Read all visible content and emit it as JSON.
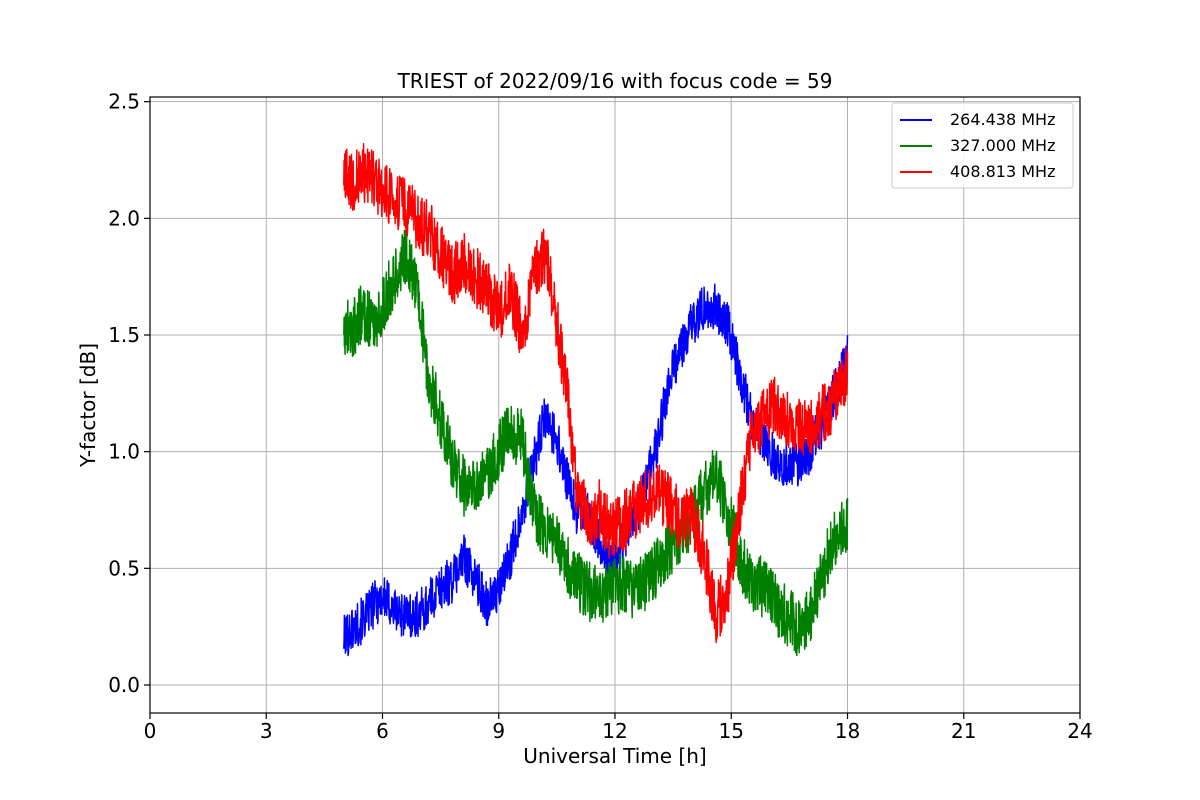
{
  "chart_data": {
    "type": "line",
    "title": "TRIEST of 2022/09/16 with focus code = 59",
    "xlabel": "Universal Time [h]",
    "ylabel": "Y-factor [dB]",
    "xlim": [
      0,
      24
    ],
    "ylim": [
      -0.12,
      2.52
    ],
    "x_ticks": [
      0,
      3,
      6,
      9,
      12,
      15,
      18,
      21,
      24
    ],
    "y_ticks": [
      0.0,
      0.5,
      1.0,
      1.5,
      2.0,
      2.5
    ],
    "x_tick_labels": [
      "0",
      "3",
      "6",
      "9",
      "12",
      "15",
      "18",
      "21",
      "24"
    ],
    "y_tick_labels": [
      "0.0",
      "0.5",
      "1.0",
      "1.5",
      "2.0",
      "2.5"
    ],
    "grid": true,
    "legend_position": "top-right",
    "noise_amplitude": [
      0.1,
      0.13,
      0.13
    ],
    "series": [
      {
        "name": "264.438 MHz",
        "color": "#0000ff",
        "x": [
          5.0,
          5.2,
          5.5,
          5.8,
          6.0,
          6.3,
          6.6,
          6.9,
          7.2,
          7.5,
          7.8,
          8.1,
          8.4,
          8.7,
          9.0,
          9.3,
          9.6,
          9.9,
          10.2,
          10.5,
          10.8,
          11.0,
          11.3,
          11.6,
          11.9,
          12.2,
          12.5,
          12.8,
          13.1,
          13.4,
          13.7,
          14.0,
          14.3,
          14.6,
          14.9,
          15.2,
          15.5,
          15.8,
          16.1,
          16.4,
          16.7,
          17.0,
          17.3,
          17.6,
          18.0
        ],
        "values": [
          0.2,
          0.24,
          0.28,
          0.35,
          0.38,
          0.32,
          0.3,
          0.3,
          0.35,
          0.42,
          0.45,
          0.55,
          0.45,
          0.35,
          0.4,
          0.55,
          0.75,
          0.95,
          1.15,
          1.05,
          0.85,
          0.75,
          0.72,
          0.62,
          0.55,
          0.6,
          0.72,
          0.85,
          1.05,
          1.3,
          1.45,
          1.55,
          1.62,
          1.62,
          1.55,
          1.35,
          1.15,
          1.05,
          0.98,
          0.95,
          0.95,
          1.0,
          1.1,
          1.22,
          1.4
        ]
      },
      {
        "name": "327.000 MHz",
        "color": "#008000",
        "x": [
          5.0,
          5.2,
          5.5,
          5.8,
          6.0,
          6.3,
          6.6,
          6.9,
          7.2,
          7.5,
          7.8,
          8.1,
          8.4,
          8.7,
          9.0,
          9.3,
          9.6,
          9.9,
          10.2,
          10.5,
          10.8,
          11.0,
          11.3,
          11.6,
          11.9,
          12.2,
          12.5,
          12.8,
          13.1,
          13.4,
          13.7,
          14.0,
          14.3,
          14.6,
          14.9,
          15.2,
          15.5,
          15.8,
          16.1,
          16.4,
          16.7,
          17.0,
          17.3,
          17.6,
          18.0
        ],
        "values": [
          1.55,
          1.52,
          1.6,
          1.55,
          1.62,
          1.75,
          1.85,
          1.7,
          1.3,
          1.15,
          0.95,
          0.85,
          0.85,
          0.9,
          1.0,
          1.1,
          1.05,
          0.75,
          0.65,
          0.6,
          0.5,
          0.45,
          0.4,
          0.38,
          0.4,
          0.45,
          0.4,
          0.45,
          0.5,
          0.58,
          0.65,
          0.72,
          0.82,
          0.9,
          0.75,
          0.55,
          0.45,
          0.42,
          0.35,
          0.3,
          0.25,
          0.28,
          0.45,
          0.6,
          0.7
        ]
      },
      {
        "name": "408.813 MHz",
        "color": "#ff0000",
        "x": [
          5.0,
          5.2,
          5.5,
          5.8,
          6.0,
          6.3,
          6.6,
          6.9,
          7.2,
          7.5,
          7.8,
          8.1,
          8.4,
          8.7,
          9.0,
          9.3,
          9.6,
          9.9,
          10.2,
          10.5,
          10.8,
          11.0,
          11.3,
          11.6,
          11.9,
          12.2,
          12.5,
          12.8,
          13.1,
          13.4,
          13.7,
          14.0,
          14.3,
          14.6,
          14.9,
          15.2,
          15.5,
          15.8,
          16.1,
          16.4,
          16.7,
          17.0,
          17.3,
          17.6,
          18.0
        ],
        "values": [
          2.18,
          2.15,
          2.2,
          2.15,
          2.12,
          2.08,
          2.05,
          1.98,
          1.95,
          1.85,
          1.75,
          1.82,
          1.75,
          1.7,
          1.6,
          1.7,
          1.5,
          1.75,
          1.85,
          1.55,
          1.2,
          0.85,
          0.7,
          0.75,
          0.65,
          0.7,
          0.75,
          0.8,
          0.82,
          0.78,
          0.7,
          0.72,
          0.55,
          0.3,
          0.4,
          0.75,
          1.05,
          1.15,
          1.2,
          1.15,
          1.1,
          1.1,
          1.15,
          1.2,
          1.35
        ]
      }
    ]
  }
}
